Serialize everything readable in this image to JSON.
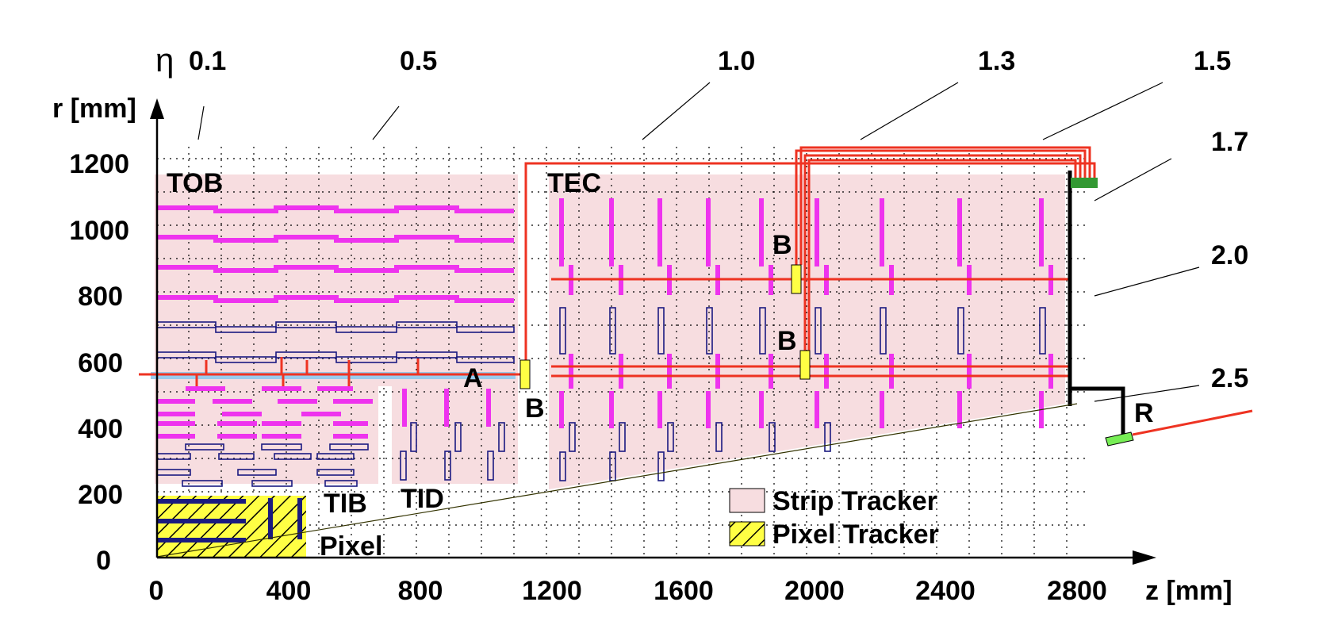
{
  "axes": {
    "x_label": "z [mm]",
    "y_label": "r [mm]",
    "x_ticks": [
      "0",
      "400",
      "800",
      "1200",
      "1600",
      "2000",
      "2400",
      "2800"
    ],
    "y_ticks": [
      "0",
      "200",
      "400",
      "600",
      "800",
      "1000",
      "1200"
    ],
    "x_range": [
      0,
      2800
    ],
    "y_range": [
      0,
      1200
    ]
  },
  "eta": {
    "symbol": "η",
    "values": [
      "0.1",
      "0.5",
      "1.0",
      "1.3",
      "1.5",
      "1.7",
      "2.0",
      "2.5"
    ]
  },
  "detectors": {
    "tob": "TOB",
    "tec": "TEC",
    "tib": "TIB",
    "tid": "TID",
    "pixel": "Pixel"
  },
  "markers": {
    "a": "A",
    "b1": "B",
    "b2": "B",
    "b3": "B",
    "r": "R"
  },
  "legend": {
    "strip": "Strip Tracker",
    "pixel": "Pixel Tracker"
  },
  "colors": {
    "strip_fill": "#f7dde0",
    "pixel_fill": "#ffff44",
    "module_magenta": "#ee33ee",
    "module_navy": "#1a1a80",
    "laser_red": "#ee3322",
    "beam_blue": "#99ccee",
    "yellow_box": "#ffff44",
    "green": "#339933",
    "light_green": "#77ee55"
  }
}
